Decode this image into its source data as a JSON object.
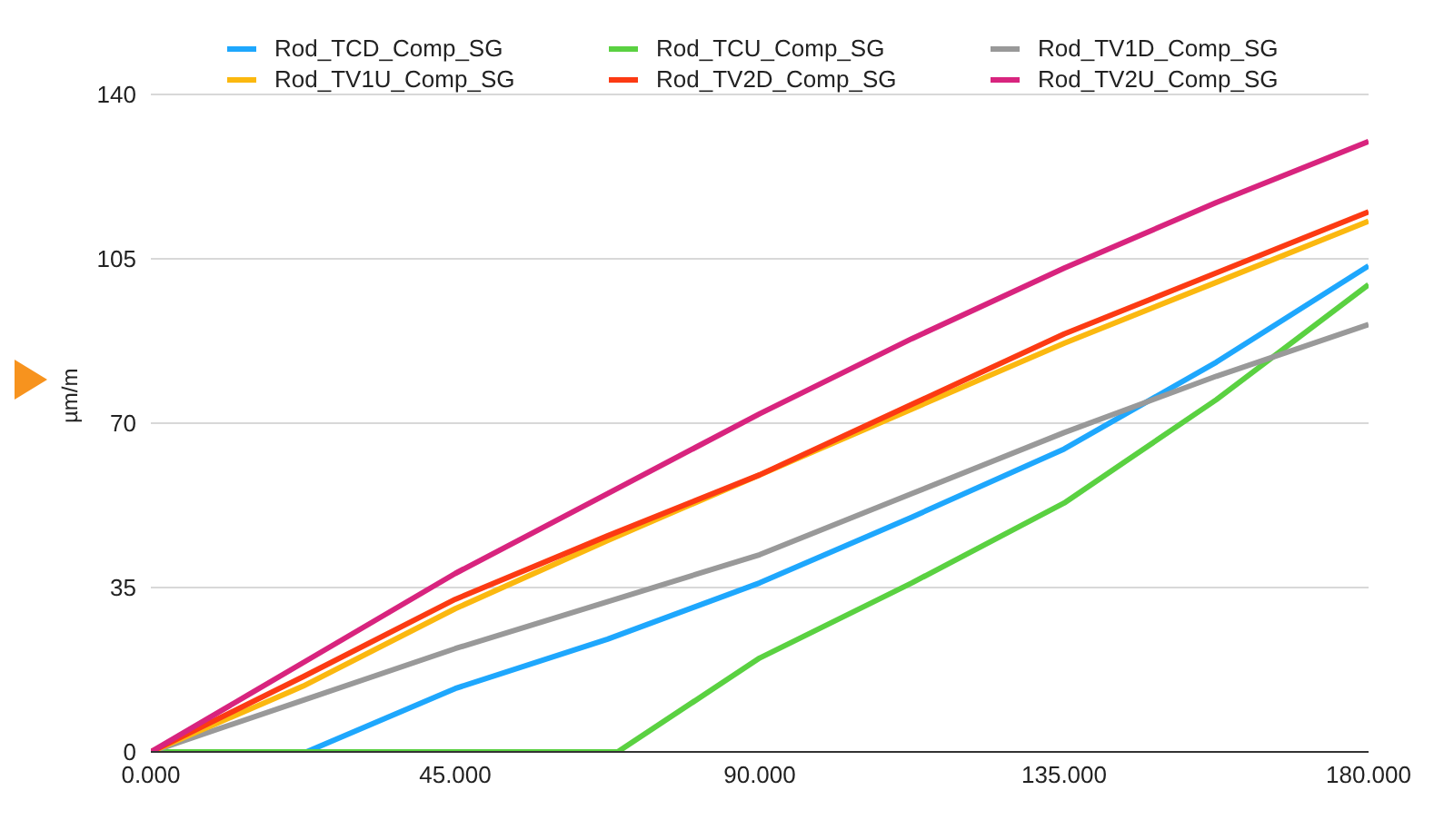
{
  "chart_data": {
    "type": "line",
    "ylabel": "µm/m",
    "xlim": [
      0,
      180
    ],
    "xticks": [
      {
        "value": 0,
        "label": "0.000"
      },
      {
        "value": 45,
        "label": "45.000"
      },
      {
        "value": 90,
        "label": "90.000"
      },
      {
        "value": 135,
        "label": "135.000"
      },
      {
        "value": 180,
        "label": "180.000"
      }
    ],
    "ylim": [
      0,
      140
    ],
    "yticks": [
      0,
      35,
      70,
      105,
      140
    ],
    "grid": "y",
    "legend": "top",
    "marker": "none",
    "line_style": "solid",
    "series": [
      {
        "name": "Rod_TCD_Comp_SG",
        "color": "#1ea7fd",
        "x": [
          0,
          23,
          45,
          67.5,
          90,
          112.5,
          135,
          157.5,
          180
        ],
        "values": [
          0,
          0,
          13.5,
          24,
          36,
          50,
          64.5,
          83,
          103.5
        ]
      },
      {
        "name": "Rod_TCU_Comp_SG",
        "color": "#5ad141",
        "x": [
          0,
          69,
          90,
          112.5,
          135,
          157.5,
          180
        ],
        "values": [
          0,
          0,
          20,
          36,
          53,
          75,
          99.5
        ]
      },
      {
        "name": "Rod_TV1D_Comp_SG",
        "color": "#999999",
        "x": [
          0,
          22.5,
          45,
          67.5,
          90,
          112.5,
          135,
          157.5,
          180
        ],
        "values": [
          0,
          11,
          22,
          32,
          42,
          55,
          68,
          80,
          91
        ]
      },
      {
        "name": "Rod_TV1U_Comp_SG",
        "color": "#fbb80f",
        "x": [
          0,
          22.5,
          45,
          67.5,
          90,
          112.5,
          135,
          157.5,
          180
        ],
        "values": [
          0,
          14,
          30.5,
          45,
          59,
          73,
          87,
          100,
          113
        ]
      },
      {
        "name": "Rod_TV2D_Comp_SG",
        "color": "#fc3a13",
        "x": [
          0,
          22.5,
          45,
          67.5,
          90,
          112.5,
          135,
          157.5,
          180
        ],
        "values": [
          0,
          16,
          32.5,
          46,
          59,
          74,
          89,
          102,
          115
        ]
      },
      {
        "name": "Rod_TV2U_Comp_SG",
        "color": "#d8247e",
        "x": [
          0,
          22.5,
          45,
          67.5,
          90,
          112.5,
          135,
          157.5,
          180
        ],
        "values": [
          0,
          19,
          38,
          55,
          72,
          88,
          103,
          117,
          130
        ]
      }
    ]
  }
}
